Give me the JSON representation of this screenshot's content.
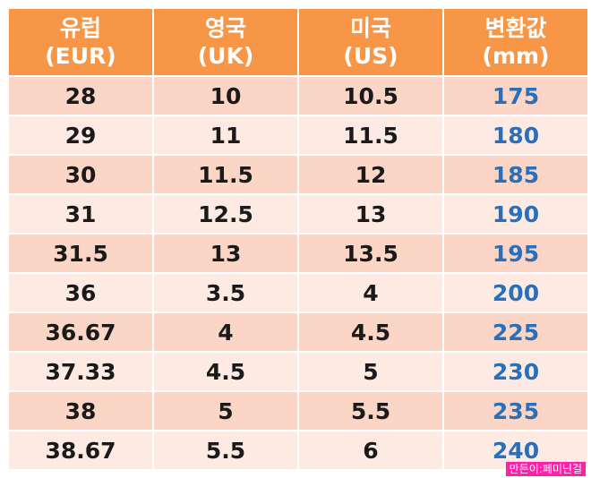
{
  "table": {
    "headers": [
      {
        "line1": "유럽",
        "line2": "(EUR)"
      },
      {
        "line1": "영국",
        "line2": "(UK)"
      },
      {
        "line1": "미국",
        "line2": "(US)"
      },
      {
        "line1": "변환값",
        "line2": "(mm)"
      }
    ],
    "rows": [
      [
        "28",
        "10",
        "10.5",
        "175"
      ],
      [
        "29",
        "11",
        "11.5",
        "180"
      ],
      [
        "30",
        "11.5",
        "12",
        "185"
      ],
      [
        "31",
        "12.5",
        "13",
        "190"
      ],
      [
        "31.5",
        "13",
        "13.5",
        "195"
      ],
      [
        "36",
        "3.5",
        "4",
        "200"
      ],
      [
        "36.67",
        "4",
        "4.5",
        "225"
      ],
      [
        "37.33",
        "4.5",
        "5",
        "230"
      ],
      [
        "38",
        "5",
        "5.5",
        "235"
      ],
      [
        "38.67",
        "5.5",
        "6",
        "240"
      ]
    ]
  },
  "watermark": "만든이:페미닌걸",
  "colors": {
    "header_bg": "#f79646",
    "row_odd_bg": "#fbd5c5",
    "row_even_bg": "#fdeae2",
    "mm_text": "#2a6fb8",
    "watermark_bg": "#ff1fa8"
  }
}
